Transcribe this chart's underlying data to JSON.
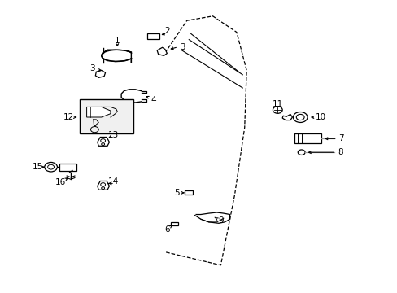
{
  "bg_color": "#ffffff",
  "fig_width": 4.89,
  "fig_height": 3.6,
  "dpi": 100,
  "line_color": "#000000",
  "text_color": "#000000",
  "font_size": 7.5,
  "door": {
    "x": [
      0.415,
      0.465,
      0.53,
      0.59,
      0.62,
      0.615,
      0.59,
      0.555,
      0.415
    ],
    "y": [
      0.82,
      0.92,
      0.94,
      0.89,
      0.76,
      0.58,
      0.34,
      0.1,
      0.14
    ]
  }
}
